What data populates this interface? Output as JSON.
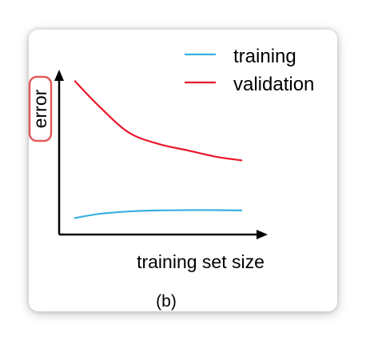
{
  "chart_data": {
    "type": "line",
    "ylabel": "error",
    "xlabel": "training set size",
    "subfigure_label": "(b)",
    "ticks": "none",
    "grid": false,
    "legend_position": "top-right",
    "ylabel_highlight_color": "#e05a5a",
    "x": [
      0.08,
      0.2,
      0.35,
      0.5,
      0.65,
      0.8,
      0.92
    ],
    "series": [
      {
        "name": "training",
        "color": "#3ab0e2",
        "values": [
          0.1,
          0.125,
          0.14,
          0.146,
          0.148,
          0.148,
          0.146
        ]
      },
      {
        "name": "validation",
        "color": "#e8172a",
        "values": [
          0.93,
          0.78,
          0.62,
          0.55,
          0.51,
          0.47,
          0.45
        ]
      }
    ]
  }
}
